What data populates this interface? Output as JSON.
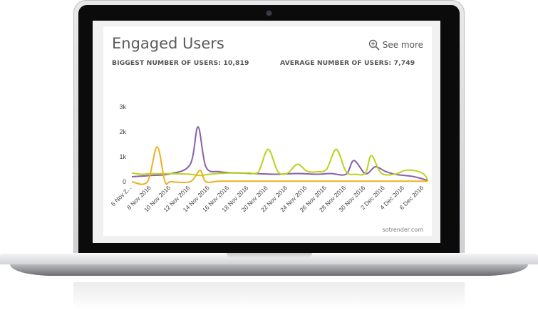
{
  "card": {
    "title": "Engaged Users",
    "see_more_label": "See more",
    "biggest_stat": "BIGGEST NUMBER OF USERS: 10,819",
    "average_stat": "AVERAGE NUMBER OF USERS: 7,749",
    "credit": "sotrender.com"
  },
  "colors": {
    "purple": "#8a5ea8",
    "lime": "#b9d31a",
    "orange": "#f0b01e",
    "axis_text": "#444444",
    "title_text": "#5a5a5a"
  },
  "icons": {
    "see_more": "zoom-in-icon"
  },
  "chart_data": {
    "type": "line",
    "y_ticks": [
      "0",
      "1k",
      "2k",
      "3k"
    ],
    "ylim": [
      0,
      3000
    ],
    "x": [
      "6 Nov 2...",
      "8 Nov 2016",
      "10 Nov 2016",
      "12 Nov 2016",
      "14 Nov 2016",
      "16 Nov 2016",
      "18 Nov 2016",
      "20 Nov 2016",
      "22 Nov 2016",
      "24 Nov 2016",
      "26 Nov 2016",
      "28 Nov 2016",
      "30 Nov 2016",
      "2 Dec 2016",
      "4 Dec 2016",
      "6 Dec 2016"
    ],
    "series": [
      {
        "color": "#8a5ea8",
        "points": [
          [
            0.0,
            200
          ],
          [
            1.0,
            250
          ],
          [
            2.0,
            320
          ],
          [
            3.0,
            700
          ],
          [
            3.4,
            2200
          ],
          [
            3.8,
            600
          ],
          [
            4.5,
            400
          ],
          [
            5.5,
            350
          ],
          [
            6.5,
            320
          ],
          [
            7.5,
            300
          ],
          [
            8.5,
            330
          ],
          [
            9.5,
            300
          ],
          [
            10.2,
            330
          ],
          [
            11.0,
            300
          ],
          [
            11.4,
            850
          ],
          [
            12.0,
            320
          ],
          [
            12.5,
            600
          ],
          [
            13.0,
            420
          ],
          [
            13.5,
            300
          ],
          [
            14.0,
            250
          ],
          [
            14.5,
            200
          ],
          [
            15.2,
            50
          ]
        ]
      },
      {
        "color": "#b9d31a",
        "points": [
          [
            0.0,
            350
          ],
          [
            0.5,
            300
          ],
          [
            1.0,
            320
          ],
          [
            2.0,
            320
          ],
          [
            3.0,
            300
          ],
          [
            3.5,
            250
          ],
          [
            4.0,
            300
          ],
          [
            5.0,
            350
          ],
          [
            6.0,
            350
          ],
          [
            6.5,
            400
          ],
          [
            7.0,
            1300
          ],
          [
            7.5,
            400
          ],
          [
            8.0,
            350
          ],
          [
            8.5,
            700
          ],
          [
            9.0,
            420
          ],
          [
            9.5,
            400
          ],
          [
            10.0,
            500
          ],
          [
            10.5,
            1300
          ],
          [
            11.0,
            400
          ],
          [
            11.5,
            300
          ],
          [
            12.0,
            350
          ],
          [
            12.3,
            1050
          ],
          [
            12.8,
            350
          ],
          [
            13.5,
            300
          ],
          [
            14.0,
            450
          ],
          [
            14.5,
            450
          ],
          [
            15.0,
            300
          ],
          [
            15.2,
            30
          ]
        ]
      },
      {
        "color": "#f0b01e",
        "points": [
          [
            0.0,
            0
          ],
          [
            0.8,
            0
          ],
          [
            1.3,
            1400
          ],
          [
            1.7,
            0
          ],
          [
            2.0,
            0
          ],
          [
            3.0,
            0
          ],
          [
            3.5,
            450
          ],
          [
            3.8,
            0
          ],
          [
            4.5,
            20
          ],
          [
            6.0,
            20
          ],
          [
            8.0,
            20
          ],
          [
            10.0,
            20
          ],
          [
            12.0,
            20
          ],
          [
            14.0,
            20
          ],
          [
            15.2,
            20
          ]
        ]
      }
    ]
  }
}
